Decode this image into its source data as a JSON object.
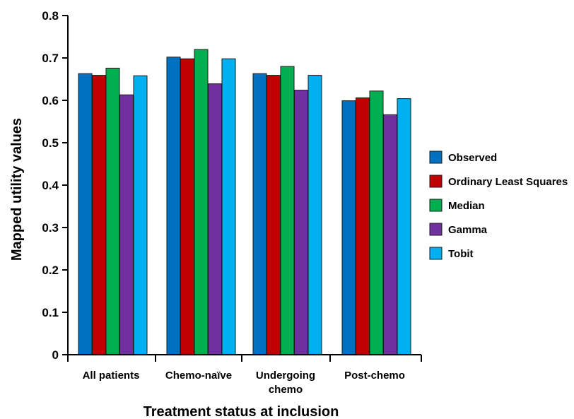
{
  "chart_data": {
    "type": "bar",
    "xlabel": "Treatment status at inclusion",
    "ylabel": "Mapped utility values",
    "ylim": [
      0,
      0.8
    ],
    "yticks": [
      "0",
      "0.1",
      "0.2",
      "0.3",
      "0.4",
      "0.5",
      "0.6",
      "0.7",
      "0.8"
    ],
    "categories": [
      [
        "All patients"
      ],
      [
        "Chemo-naïve"
      ],
      [
        "Undergoing",
        "chemo"
      ],
      [
        "Post-chemo"
      ]
    ],
    "series": [
      {
        "name": "Observed",
        "color": "#0070c0",
        "values": [
          0.663,
          0.702,
          0.663,
          0.599
        ]
      },
      {
        "name": "Ordinary Least Squares",
        "color": "#c00000",
        "values": [
          0.659,
          0.698,
          0.659,
          0.606
        ]
      },
      {
        "name": "Median",
        "color": "#00b050",
        "values": [
          0.676,
          0.72,
          0.68,
          0.622
        ]
      },
      {
        "name": "Gamma",
        "color": "#7030a0",
        "values": [
          0.613,
          0.639,
          0.624,
          0.566
        ]
      },
      {
        "name": "Tobit",
        "color": "#00b0f0",
        "values": [
          0.658,
          0.698,
          0.659,
          0.604
        ]
      }
    ],
    "legend_position": "right",
    "grid": false
  }
}
